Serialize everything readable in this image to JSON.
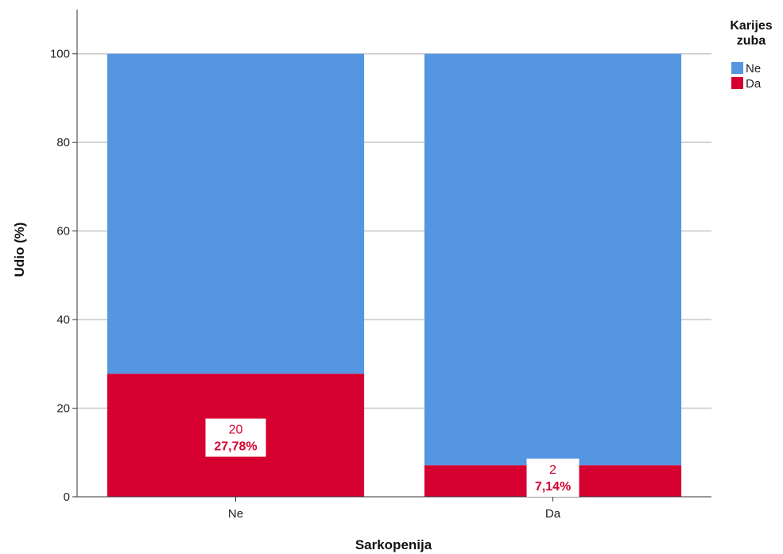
{
  "chart_data": {
    "type": "bar",
    "stacked": true,
    "categories": [
      "Ne",
      "Da"
    ],
    "series": [
      {
        "name": "Da",
        "values": [
          27.78,
          7.14
        ],
        "color": "#d5002f"
      },
      {
        "name": "Ne",
        "values": [
          72.22,
          92.86
        ],
        "color": "#5596e3"
      }
    ],
    "data_labels": [
      {
        "count": "20",
        "percent": "27,78%"
      },
      {
        "count": "2",
        "percent": "7,14%"
      }
    ],
    "xlabel": "Sarkopenija",
    "ylabel": "Udio (%)",
    "ylim": [
      0,
      110
    ],
    "yticks": [
      0,
      20,
      40,
      60,
      80,
      100
    ],
    "grid": true,
    "legend": {
      "title_lines": [
        "Karijes",
        "zuba"
      ],
      "items": [
        {
          "label": "Ne",
          "color": "#5596e3"
        },
        {
          "label": "Da",
          "color": "#d5002f"
        }
      ],
      "placement": "top-right"
    },
    "label_color": "#d5002f"
  }
}
